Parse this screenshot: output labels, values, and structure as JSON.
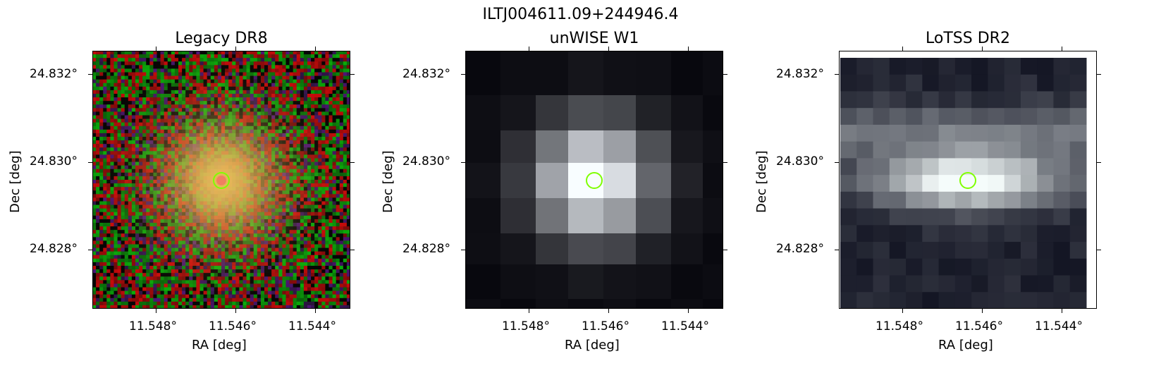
{
  "suptitle": "ILTJ004611.09+244946.4",
  "panels": [
    {
      "title": "Legacy DR8",
      "xlabel": "RA [deg]",
      "ylabel": "Dec [deg]",
      "xticks": [
        "11.548°",
        "11.546°",
        "11.544°"
      ],
      "yticks": [
        "24.832°",
        "24.830°",
        "24.828°"
      ]
    },
    {
      "title": "unWISE W1",
      "xlabel": "RA [deg]",
      "ylabel": "Dec [deg]",
      "xticks": [
        "11.548°",
        "11.546°",
        "11.544°"
      ],
      "yticks": [
        "24.832°",
        "24.830°",
        "24.828°"
      ]
    },
    {
      "title": "LoTSS DR2",
      "xlabel": "RA [deg]",
      "ylabel": "Dec [deg]",
      "xticks": [
        "11.548°",
        "11.546°",
        "11.544°"
      ],
      "yticks": [
        "24.832°",
        "24.830°",
        "24.828°"
      ]
    }
  ],
  "marker": {
    "type": "circle",
    "color": "#7fff00",
    "ra": 11.5463,
    "dec": 24.8296
  },
  "colors": {
    "marker": "#7fff00",
    "frame": "#000000",
    "background": "#ffffff"
  }
}
